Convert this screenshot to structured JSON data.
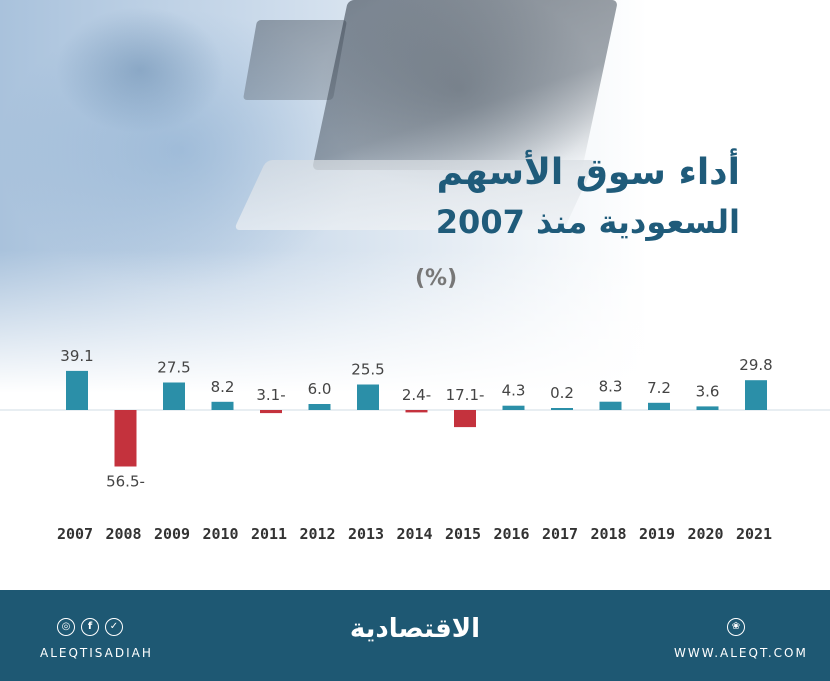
{
  "header": {
    "title_line1": "أداء سوق الأسهم",
    "title_line2": "السعودية منذ 2007",
    "unit": "(%)"
  },
  "chart_data": {
    "type": "bar",
    "categories": [
      "2007",
      "2008",
      "2009",
      "2010",
      "2011",
      "2012",
      "2013",
      "2014",
      "2015",
      "2016",
      "2017",
      "2018",
      "2019",
      "2020",
      "2021"
    ],
    "values": [
      39.1,
      -56.5,
      27.5,
      8.2,
      -3.1,
      6.0,
      25.5,
      -2.4,
      -17.1,
      4.3,
      0.2,
      8.3,
      7.2,
      3.6,
      29.8
    ],
    "value_labels": [
      "39.1",
      "56.5-",
      "27.5",
      "8.2",
      "3.1-",
      "6.0",
      "25.5",
      "2.4-",
      "17.1-",
      "4.3",
      "0.2",
      "8.3",
      "7.2",
      "3.6",
      "29.8"
    ],
    "title": "أداء سوق الأسهم السعودية منذ 2007",
    "ylabel": "(%)",
    "colors": {
      "positive": "#2b8fa8",
      "negative": "#c4323d",
      "baseline": "#2b8fa8"
    },
    "grid": false,
    "legend": "none"
  },
  "footer": {
    "handle": "ALEQTISADIAH",
    "logo": "الاقتصادية",
    "website": "WWW.ALEQT.COM",
    "social_icons": [
      "instagram-icon",
      "facebook-icon",
      "twitter-icon"
    ],
    "web_icon": "globe-icon",
    "colors": {
      "background": "#1e5873"
    }
  }
}
